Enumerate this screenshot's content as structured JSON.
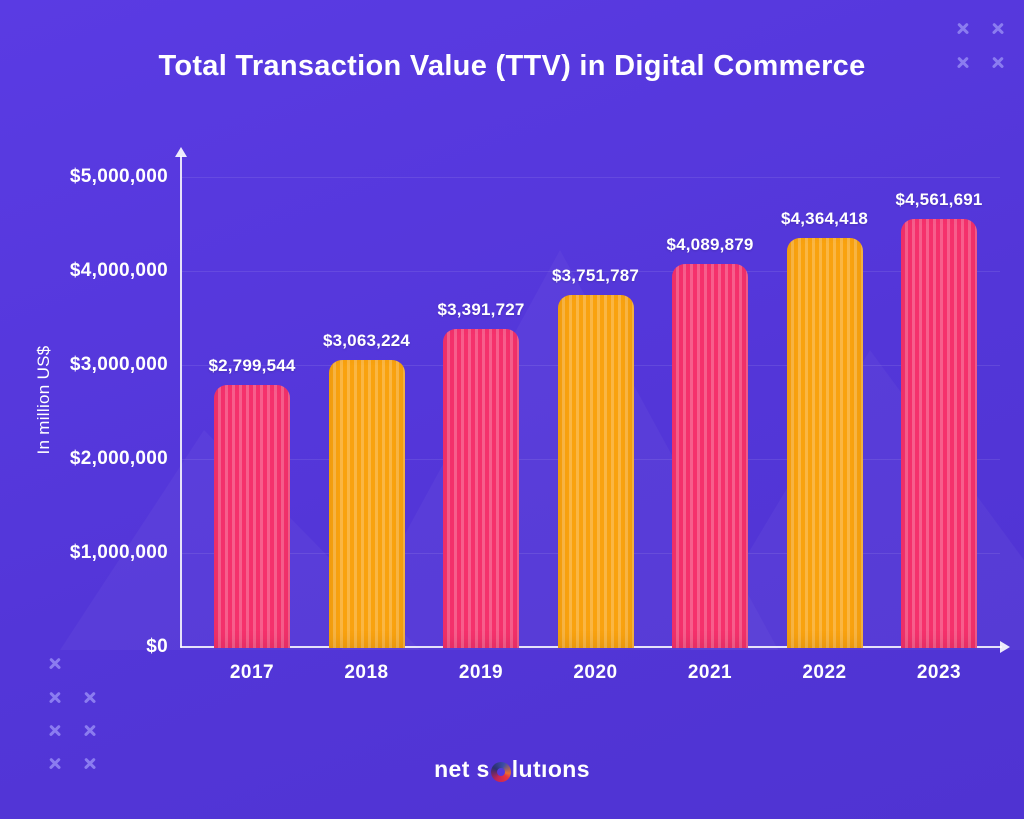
{
  "title": "Total Transaction Value (TTV) in Digital Commerce",
  "colors": {
    "background": "#5438DC",
    "bar_pink": "#F5316C",
    "bar_orange": "#F9A20F",
    "text": "#FFFFFF",
    "decor_x": "#8B7CF0"
  },
  "chart_data": {
    "type": "bar",
    "title": "Total Transaction Value (TTV) in Digital Commerce",
    "categories": [
      "2017",
      "2018",
      "2019",
      "2020",
      "2021",
      "2022",
      "2023"
    ],
    "values": [
      2799544,
      3063224,
      3391727,
      3751787,
      4089879,
      4364418,
      4561691
    ],
    "value_labels": [
      "$2,799,544",
      "$3,063,224",
      "$3,391,727",
      "$3,751,787",
      "$4,089,879",
      "$4,364,418",
      "$4,561,691"
    ],
    "bar_colors": [
      "#F5316C",
      "#F9A20F",
      "#F5316C",
      "#F9A20F",
      "#F5316C",
      "#F9A20F",
      "#F5316C"
    ],
    "xlabel": "",
    "ylabel": "In million US$",
    "ylim": [
      0,
      5000000
    ],
    "yticks": [
      0,
      1000000,
      2000000,
      3000000,
      4000000,
      5000000
    ],
    "ytick_labels": [
      "$0",
      "$1,000,000",
      "$2,000,000",
      "$3,000,000",
      "$4,000,000",
      "$5,000,000"
    ],
    "grid": "horizontal-faint",
    "legend": null
  },
  "footer": {
    "logo_part1": "net s",
    "logo_part2": "lutıons"
  }
}
